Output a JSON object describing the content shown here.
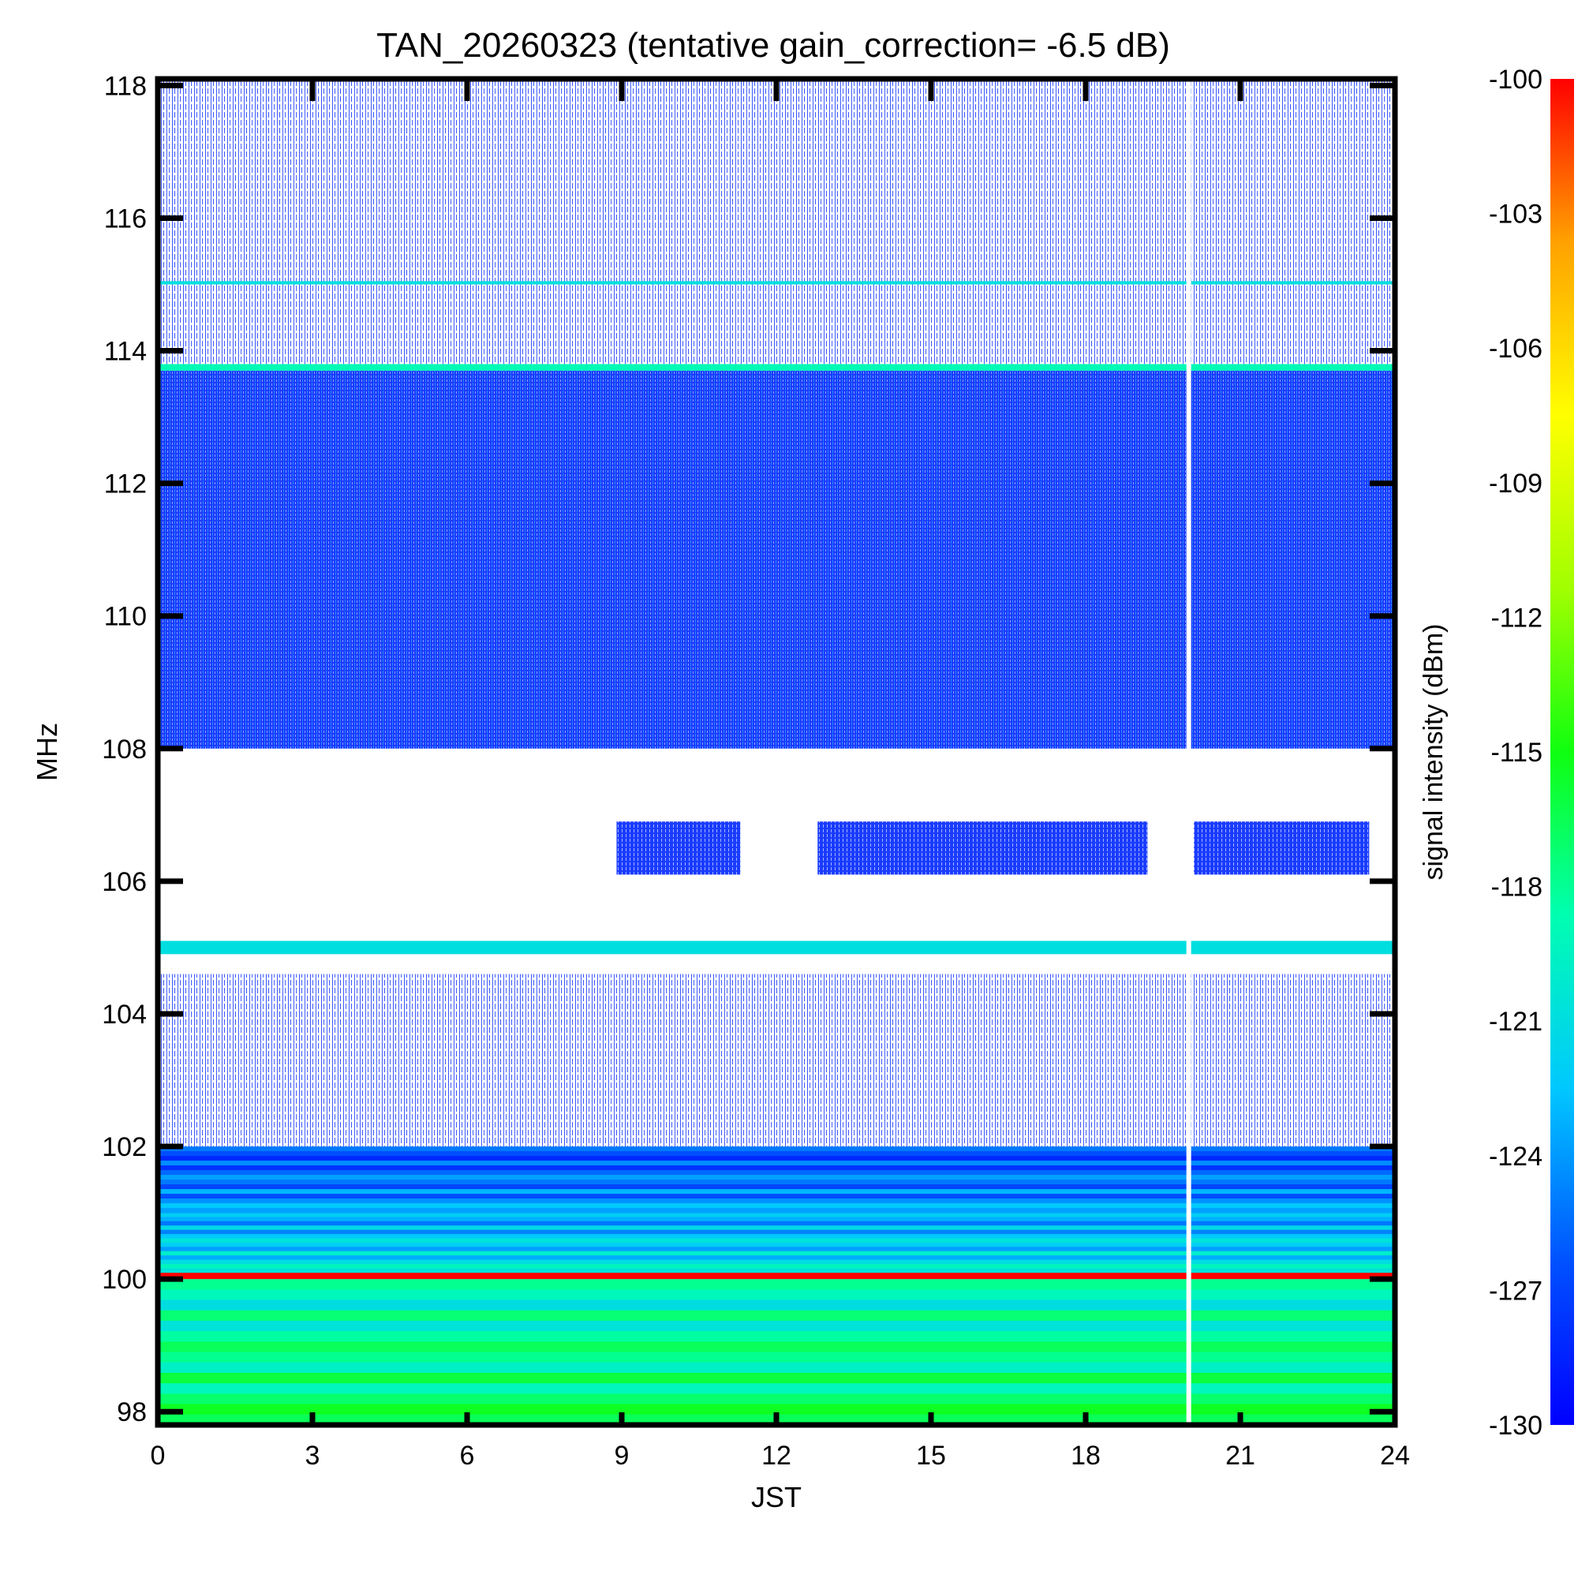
{
  "chart_data": {
    "type": "heatmap",
    "title": "TAN_20260323 (tentative gain_correction= -6.5 dB)",
    "xlabel": "JST",
    "ylabel": "MHz",
    "colorbar_label": "signal intensity (dBm)",
    "xlim": [
      0,
      24
    ],
    "ylim": [
      97.8,
      118.1
    ],
    "x_ticks": [
      0,
      3,
      6,
      9,
      12,
      15,
      18,
      21,
      24
    ],
    "y_ticks": [
      98,
      100,
      102,
      104,
      106,
      108,
      110,
      112,
      114,
      116,
      118
    ],
    "colorbar_range": [
      -130,
      -100
    ],
    "colorbar_ticks": [
      -100,
      -103,
      -106,
      -109,
      -112,
      -115,
      -118,
      -121,
      -124,
      -127,
      -130
    ],
    "colormap": [
      "#0000ff",
      "#0050ff",
      "#00c8ff",
      "#00ffb0",
      "#10ff10",
      "#a0ff00",
      "#ffff00",
      "#ffa000",
      "#ff0000"
    ],
    "data_gap_jst": 20.0,
    "bands": [
      {
        "f0": 97.8,
        "f1": 100.0,
        "level_dbm": -120,
        "fill": "continuous"
      },
      {
        "f0": 100.0,
        "f1": 100.1,
        "level_dbm": -100,
        "fill": "line"
      },
      {
        "f0": 100.1,
        "f1": 101.0,
        "level_dbm": -124,
        "fill": "continuous"
      },
      {
        "f0": 101.0,
        "f1": 102.0,
        "level_dbm": -127,
        "fill": "continuous"
      },
      {
        "f0": 102.0,
        "f1": 104.6,
        "level_dbm": -129,
        "fill": "sparse"
      },
      {
        "f0": 104.9,
        "f1": 105.1,
        "level_dbm": -121,
        "fill": "line"
      },
      {
        "f0": 106.1,
        "f1": 106.9,
        "level_dbm": -129,
        "fill": "patches",
        "jst_ranges": [
          [
            8.9,
            11.3
          ],
          [
            12.8,
            19.2
          ],
          [
            20.1,
            23.5
          ]
        ]
      },
      {
        "f0": 108.0,
        "f1": 113.7,
        "level_dbm": -128,
        "fill": "dense"
      },
      {
        "f0": 113.7,
        "f1": 113.8,
        "level_dbm": -119,
        "fill": "line"
      },
      {
        "f0": 113.8,
        "f1": 118.1,
        "level_dbm": -129,
        "fill": "sparse"
      },
      {
        "f0": 115.0,
        "f1": 115.05,
        "level_dbm": -121,
        "fill": "line"
      }
    ]
  }
}
